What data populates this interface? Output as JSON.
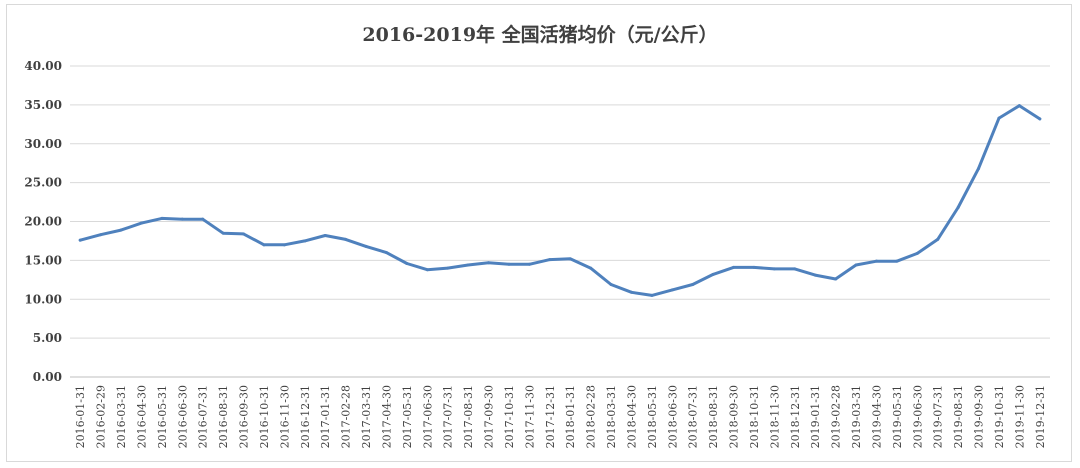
{
  "chart_data": {
    "type": "line",
    "title": "2016-2019年 全国活猪均价（元/公斤）",
    "xlabel": "",
    "ylabel": "",
    "ylim": [
      0,
      40
    ],
    "yticks": [
      "0.00",
      "5.00",
      "10.00",
      "15.00",
      "20.00",
      "25.00",
      "30.00",
      "35.00",
      "40.00"
    ],
    "grid": true,
    "legend": "none",
    "line_color": "#4f81bd",
    "x": [
      "2016-01-31",
      "2016-02-29",
      "2016-03-31",
      "2016-04-30",
      "2016-05-31",
      "2016-06-30",
      "2016-07-31",
      "2016-08-31",
      "2016-09-30",
      "2016-10-31",
      "2016-11-30",
      "2016-12-31",
      "2017-01-31",
      "2017-02-28",
      "2017-03-31",
      "2017-04-30",
      "2017-05-31",
      "2017-06-30",
      "2017-07-31",
      "2017-08-31",
      "2017-09-30",
      "2017-10-31",
      "2017-11-30",
      "2017-12-31",
      "2018-01-31",
      "2018-02-28",
      "2018-03-31",
      "2018-04-30",
      "2018-05-31",
      "2018-06-30",
      "2018-07-31",
      "2018-08-31",
      "2018-09-30",
      "2018-10-31",
      "2018-11-30",
      "2018-12-31",
      "2019-01-31",
      "2019-02-28",
      "2019-03-31",
      "2019-04-30",
      "2019-05-31",
      "2019-06-30",
      "2019-07-31",
      "2019-08-31",
      "2019-09-30",
      "2019-10-31",
      "2019-11-30",
      "2019-12-31"
    ],
    "series": [
      {
        "values": [
          17.6,
          18.3,
          18.9,
          19.8,
          20.4,
          20.3,
          20.3,
          18.5,
          18.4,
          17.0,
          17.0,
          17.5,
          18.2,
          17.7,
          16.8,
          16.0,
          14.6,
          13.8,
          14.0,
          14.4,
          14.7,
          14.5,
          14.5,
          15.1,
          15.2,
          14.0,
          11.9,
          10.9,
          10.5,
          11.2,
          11.9,
          13.2,
          14.1,
          14.1,
          13.9,
          13.9,
          13.1,
          12.6,
          14.4,
          14.9,
          14.9,
          15.9,
          17.7,
          21.8,
          26.8,
          33.3,
          34.9,
          33.2
        ]
      }
    ]
  }
}
